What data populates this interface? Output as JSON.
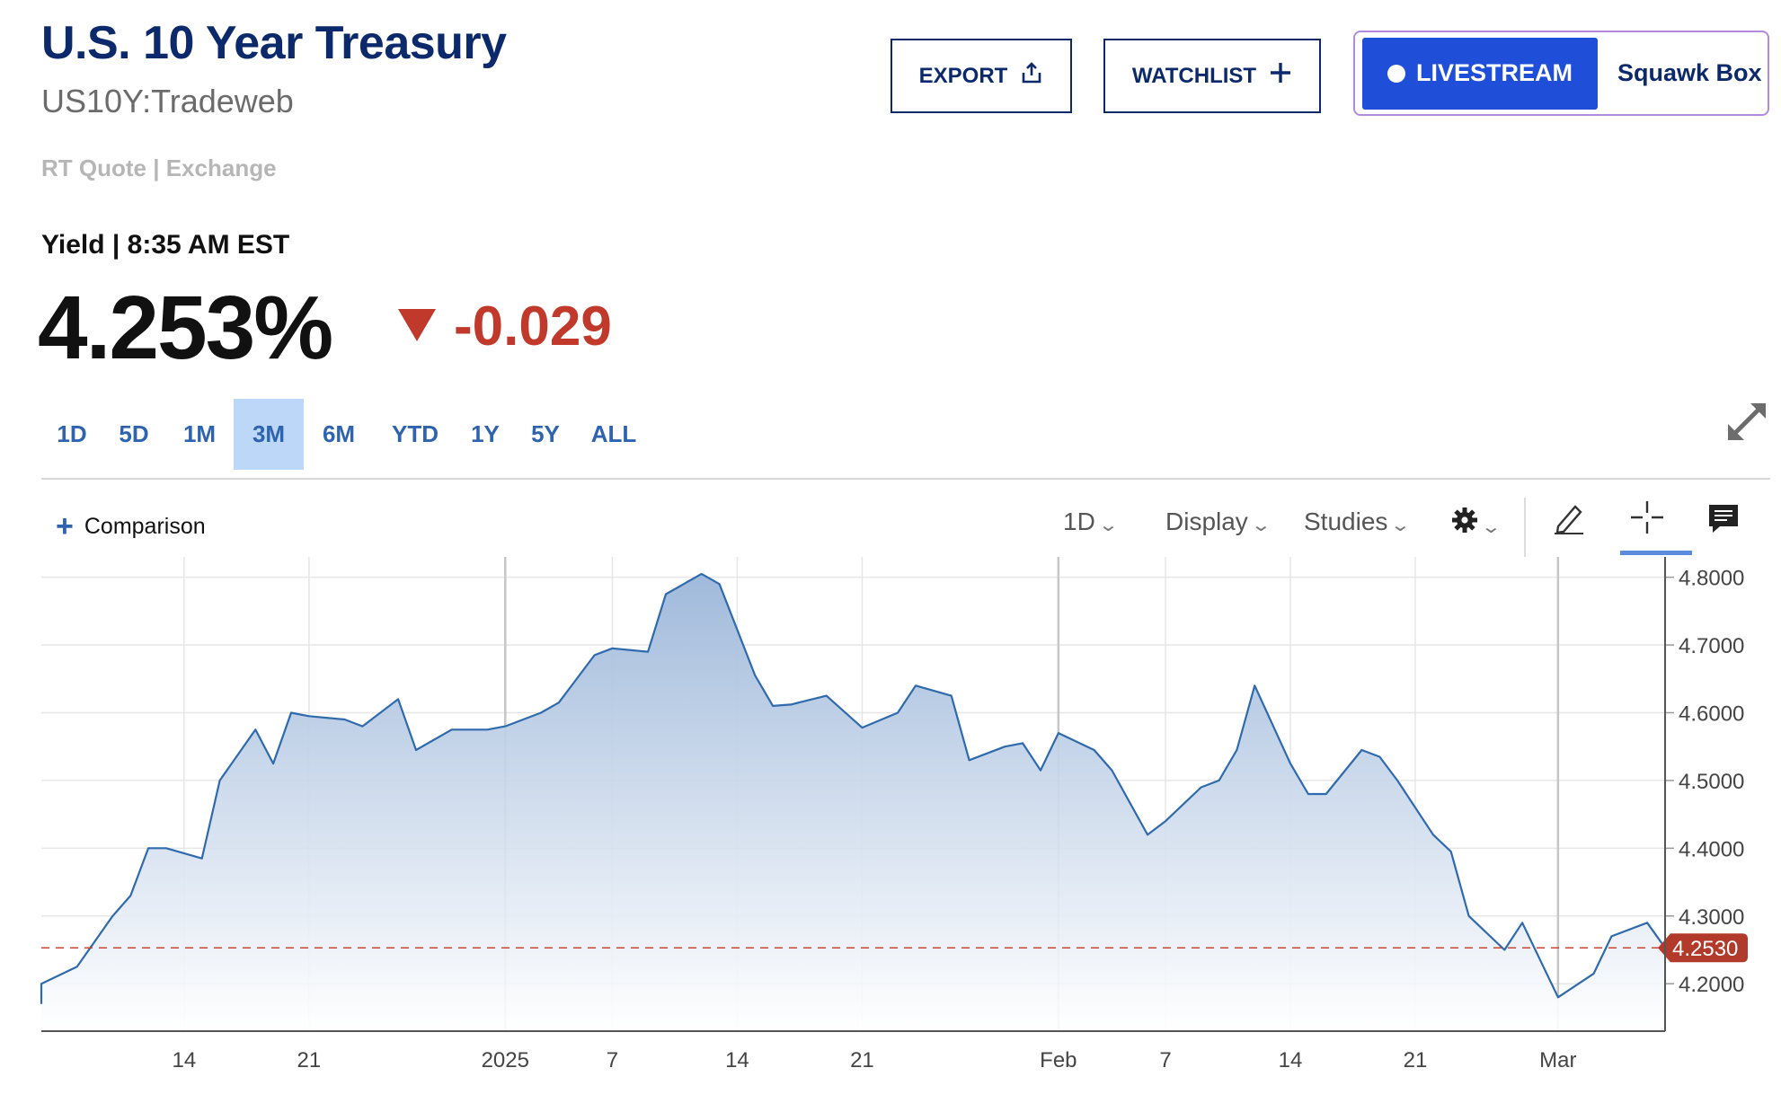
{
  "header": {
    "title": "U.S. 10 Year Treasury",
    "symbol": "US10Y:Tradeweb",
    "quote_type": "RT Quote | Exchange",
    "yield_label": "Yield | 8:35 AM EST",
    "price": "4.253%",
    "change": "-0.029",
    "change_color": "#c0392b"
  },
  "actions": {
    "export_label": "EXPORT",
    "watchlist_label": "WATCHLIST",
    "livestream_label": "LIVESTREAM",
    "squawk_label": "Squawk Box"
  },
  "ranges": [
    {
      "label": "1D",
      "active": false
    },
    {
      "label": "5D",
      "active": false
    },
    {
      "label": "1M",
      "active": false
    },
    {
      "label": "3M",
      "active": true
    },
    {
      "label": "6M",
      "active": false
    },
    {
      "label": "YTD",
      "active": false
    },
    {
      "label": "1Y",
      "active": false
    },
    {
      "label": "5Y",
      "active": false
    },
    {
      "label": "ALL",
      "active": false
    }
  ],
  "toolbar": {
    "comparison_label": "Comparison",
    "interval_label": "1D",
    "display_label": "Display",
    "studies_label": "Studies"
  },
  "icons": [
    "share-icon",
    "plus-icon",
    "expand-icon",
    "settings-icon",
    "pencil-icon",
    "crosshair-icon",
    "comment-icon"
  ],
  "colors": {
    "accent": "#2e63b0",
    "brand": "#0c2a6b",
    "line": "#2f6aad",
    "negative": "#c0392b",
    "live": "#1f4fd8"
  },
  "chart_data": {
    "type": "area",
    "ylim": [
      4.13,
      4.83
    ],
    "y_ticks": [
      "4.8000",
      "4.7000",
      "4.6000",
      "4.5000",
      "4.4000",
      "4.3000",
      "4.2000"
    ],
    "x_tick_labels": [
      {
        "label": "14",
        "date": "2024-12-14"
      },
      {
        "label": "21",
        "date": "2024-12-21"
      },
      {
        "label": "2025",
        "date": "2025-01-01"
      },
      {
        "label": "7",
        "date": "2025-01-07"
      },
      {
        "label": "14",
        "date": "2025-01-14"
      },
      {
        "label": "21",
        "date": "2025-01-21"
      },
      {
        "label": "Feb",
        "date": "2025-02-01"
      },
      {
        "label": "7",
        "date": "2025-02-07"
      },
      {
        "label": "14",
        "date": "2025-02-14"
      },
      {
        "label": "21",
        "date": "2025-02-21"
      },
      {
        "label": "Mar",
        "date": "2025-03-01"
      }
    ],
    "current_value": 4.253,
    "current_label": "4.2530",
    "series": [
      {
        "values": [
          [
            "2024-12-06",
            4.17
          ],
          [
            "2024-12-06",
            4.2
          ],
          [
            "2024-12-08",
            4.225
          ],
          [
            "2024-12-10",
            4.3
          ],
          [
            "2024-12-11",
            4.33
          ],
          [
            "2024-12-12",
            4.4
          ],
          [
            "2024-12-13",
            4.4
          ],
          [
            "2024-12-15",
            4.385
          ],
          [
            "2024-12-16",
            4.5
          ],
          [
            "2024-12-18",
            4.575
          ],
          [
            "2024-12-19",
            4.525
          ],
          [
            "2024-12-20",
            4.6
          ],
          [
            "2024-12-21",
            4.595
          ],
          [
            "2024-12-23",
            4.59
          ],
          [
            "2024-12-24",
            4.58
          ],
          [
            "2024-12-26",
            4.62
          ],
          [
            "2024-12-27",
            4.545
          ],
          [
            "2024-12-29",
            4.575
          ],
          [
            "2024-12-31",
            4.575
          ],
          [
            "2025-01-01",
            4.58
          ],
          [
            "2025-01-03",
            4.6
          ],
          [
            "2025-01-04",
            4.615
          ],
          [
            "2025-01-06",
            4.685
          ],
          [
            "2025-01-07",
            4.695
          ],
          [
            "2025-01-09",
            4.69
          ],
          [
            "2025-01-10",
            4.775
          ],
          [
            "2025-01-12",
            4.805
          ],
          [
            "2025-01-13",
            4.79
          ],
          [
            "2025-01-15",
            4.655
          ],
          [
            "2025-01-16",
            4.61
          ],
          [
            "2025-01-17",
            4.612
          ],
          [
            "2025-01-19",
            4.625
          ],
          [
            "2025-01-21",
            4.578
          ],
          [
            "2025-01-23",
            4.6
          ],
          [
            "2025-01-24",
            4.64
          ],
          [
            "2025-01-26",
            4.625
          ],
          [
            "2025-01-27",
            4.53
          ],
          [
            "2025-01-29",
            4.55
          ],
          [
            "2025-01-30",
            4.555
          ],
          [
            "2025-01-31",
            4.515
          ],
          [
            "2025-02-01",
            4.57
          ],
          [
            "2025-02-03",
            4.545
          ],
          [
            "2025-02-04",
            4.515
          ],
          [
            "2025-02-06",
            4.42
          ],
          [
            "2025-02-07",
            4.44
          ],
          [
            "2025-02-09",
            4.49
          ],
          [
            "2025-02-10",
            4.5
          ],
          [
            "2025-02-11",
            4.545
          ],
          [
            "2025-02-12",
            4.64
          ],
          [
            "2025-02-14",
            4.525
          ],
          [
            "2025-02-15",
            4.48
          ],
          [
            "2025-02-16",
            4.48
          ],
          [
            "2025-02-18",
            4.545
          ],
          [
            "2025-02-19",
            4.535
          ],
          [
            "2025-02-20",
            4.5
          ],
          [
            "2025-02-22",
            4.42
          ],
          [
            "2025-02-23",
            4.395
          ],
          [
            "2025-02-24",
            4.3
          ],
          [
            "2025-02-26",
            4.25
          ],
          [
            "2025-02-27",
            4.29
          ],
          [
            "2025-02-28",
            4.235
          ],
          [
            "2025-03-01",
            4.18
          ],
          [
            "2025-03-03",
            4.215
          ],
          [
            "2025-03-04",
            4.27
          ],
          [
            "2025-03-06",
            4.29
          ],
          [
            "2025-03-07",
            4.253
          ]
        ]
      }
    ]
  }
}
